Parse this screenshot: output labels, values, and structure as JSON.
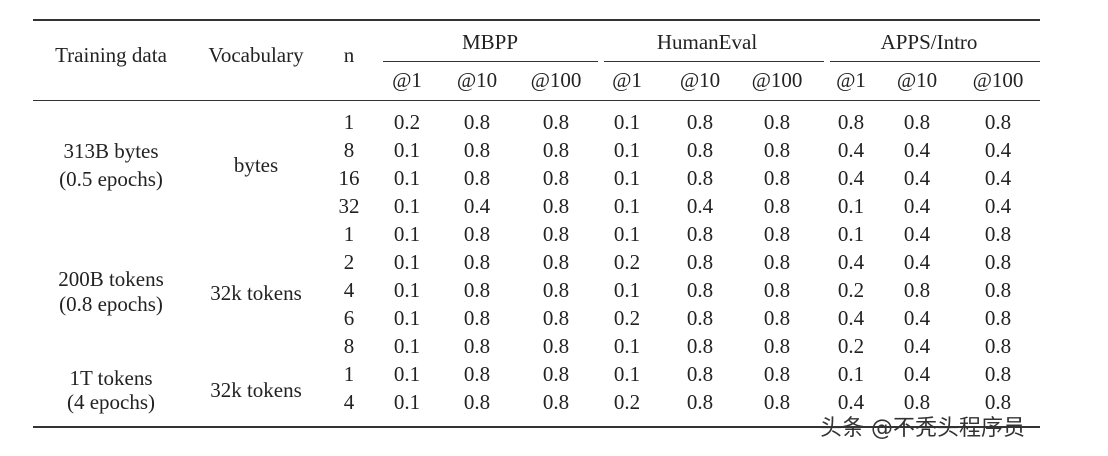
{
  "header": {
    "training_data": "Training data",
    "vocabulary": "Vocabulary",
    "n": "n",
    "groups": [
      "MBPP",
      "HumanEval",
      "APPS/Intro"
    ],
    "k_labels": [
      "@1",
      "@10",
      "@100"
    ]
  },
  "groups": [
    {
      "training_data": [
        "313B bytes",
        "(0.5 epochs)"
      ],
      "vocabulary": "bytes"
    },
    {
      "training_data": [
        "200B tokens",
        "(0.8 epochs)"
      ],
      "vocabulary": "32k tokens"
    },
    {
      "training_data": [
        "1T tokens",
        "(4 epochs)"
      ],
      "vocabulary": "32k tokens"
    }
  ],
  "rows": [
    {
      "n": "1",
      "values": [
        "0.2",
        "0.8",
        "0.8",
        "0.1",
        "0.8",
        "0.8",
        "0.8",
        "0.8",
        "0.8"
      ]
    },
    {
      "n": "8",
      "values": [
        "0.1",
        "0.8",
        "0.8",
        "0.1",
        "0.8",
        "0.8",
        "0.4",
        "0.4",
        "0.4"
      ]
    },
    {
      "n": "16",
      "values": [
        "0.1",
        "0.8",
        "0.8",
        "0.1",
        "0.8",
        "0.8",
        "0.4",
        "0.4",
        "0.4"
      ]
    },
    {
      "n": "32",
      "values": [
        "0.1",
        "0.4",
        "0.8",
        "0.1",
        "0.4",
        "0.8",
        "0.1",
        "0.4",
        "0.4"
      ]
    },
    {
      "n": "1",
      "values": [
        "0.1",
        "0.8",
        "0.8",
        "0.1",
        "0.8",
        "0.8",
        "0.1",
        "0.4",
        "0.8"
      ]
    },
    {
      "n": "2",
      "values": [
        "0.1",
        "0.8",
        "0.8",
        "0.2",
        "0.8",
        "0.8",
        "0.4",
        "0.4",
        "0.8"
      ]
    },
    {
      "n": "4",
      "values": [
        "0.1",
        "0.8",
        "0.8",
        "0.1",
        "0.8",
        "0.8",
        "0.2",
        "0.8",
        "0.8"
      ]
    },
    {
      "n": "6",
      "values": [
        "0.1",
        "0.8",
        "0.8",
        "0.2",
        "0.8",
        "0.8",
        "0.4",
        "0.4",
        "0.8"
      ]
    },
    {
      "n": "8",
      "values": [
        "0.1",
        "0.8",
        "0.8",
        "0.1",
        "0.8",
        "0.8",
        "0.2",
        "0.4",
        "0.8"
      ]
    },
    {
      "n": "1",
      "values": [
        "0.1",
        "0.8",
        "0.8",
        "0.1",
        "0.8",
        "0.8",
        "0.1",
        "0.4",
        "0.8"
      ]
    },
    {
      "n": "4",
      "values": [
        "0.1",
        "0.8",
        "0.8",
        "0.2",
        "0.8",
        "0.8",
        "0.4",
        "0.8",
        "0.8"
      ]
    }
  ],
  "watermark": "头条 @不秃头程序员"
}
